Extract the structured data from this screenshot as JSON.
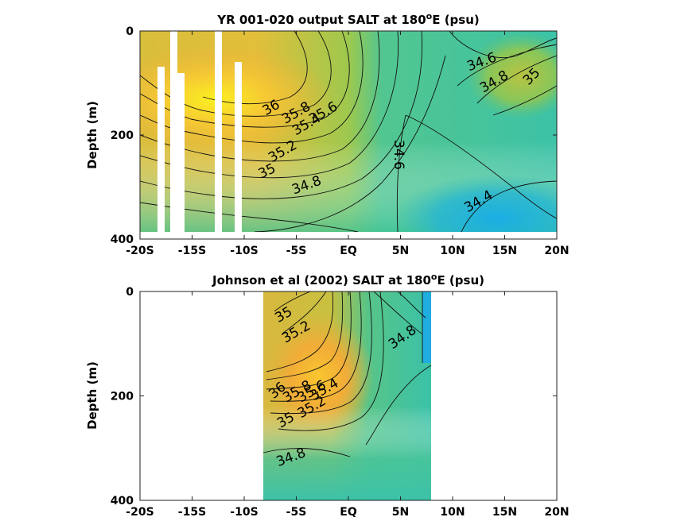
{
  "chart_data": [
    {
      "type": "heatmap",
      "title_main": "YR 001-020 output SALT at 180",
      "title_sup": "o",
      "title_tail": "E (psu)",
      "xlabel": "",
      "ylabel": "Depth (m)",
      "xlim": [
        -20,
        20
      ],
      "ylim": [
        400,
        0
      ],
      "xticks": [
        -20,
        -15,
        -10,
        -5,
        0,
        5,
        10,
        15,
        20
      ],
      "xtick_labels": [
        "-20S",
        "-15S",
        "-10S",
        "-5S",
        "EQ",
        "5N",
        "10N",
        "15N",
        "20N"
      ],
      "yticks": [
        0,
        200,
        400
      ],
      "ytick_labels": [
        "0",
        "200",
        "400"
      ],
      "colormap": [
        "#1fb0e0",
        "#30c0b0",
        "#60c880",
        "#a8c848",
        "#e6bd38",
        "#f3a838",
        "#faef28"
      ],
      "data_extent": {
        "x": [
          -20,
          20
        ],
        "depth": [
          0,
          385
        ]
      },
      "masked_columns": [
        [
          -18.2,
          -17.4,
          70,
          400
        ],
        [
          -16.6,
          -16.0,
          0,
          400
        ],
        [
          -16.0,
          -15.2,
          80,
          400
        ],
        [
          -12.2,
          -11.5,
          0,
          400
        ],
        [
          -11.2,
          -10.6,
          60,
          400
        ]
      ],
      "contour_labels": [
        {
          "text": "36",
          "x": -7.4,
          "depth": 148,
          "rot": -30
        },
        {
          "text": "35.8",
          "x": -5.0,
          "depth": 158,
          "rot": -30
        },
        {
          "text": "35.6",
          "x": -2.4,
          "depth": 158,
          "rot": -30
        },
        {
          "text": "35.4",
          "x": -4.0,
          "depth": 180,
          "rot": -30
        },
        {
          "text": "35.2",
          "x": -6.3,
          "depth": 232,
          "rot": -30
        },
        {
          "text": "35",
          "x": -7.8,
          "depth": 270,
          "rot": -25
        },
        {
          "text": "34.8",
          "x": -4.0,
          "depth": 297,
          "rot": -20
        },
        {
          "text": "34.6",
          "x": 4.8,
          "depth": 238,
          "rot": 90
        },
        {
          "text": "34.4",
          "x": 12.5,
          "depth": 328,
          "rot": -30
        },
        {
          "text": "34.6",
          "x": 12.8,
          "depth": 60,
          "rot": -20
        },
        {
          "text": "34.8",
          "x": 14.0,
          "depth": 98,
          "rot": -30
        },
        {
          "text": "35",
          "x": 17.6,
          "depth": 88,
          "rot": -45
        }
      ]
    },
    {
      "type": "heatmap",
      "title_main": "Johnson et al (2002) SALT at 180",
      "title_sup": "o",
      "title_tail": "E (psu)",
      "xlabel": "",
      "ylabel": "Depth (m)",
      "xlim": [
        -20,
        20
      ],
      "ylim": [
        400,
        0
      ],
      "xticks": [
        -20,
        -15,
        -10,
        -5,
        0,
        5,
        10,
        15,
        20
      ],
      "xtick_labels": [
        "-20S",
        "-15S",
        "-10S",
        "-5S",
        "EQ",
        "5N",
        "10N",
        "15N",
        "20N"
      ],
      "yticks": [
        0,
        200,
        400
      ],
      "ytick_labels": [
        "0",
        "200",
        "400"
      ],
      "colormap": [
        "#1fb0e0",
        "#30c0b0",
        "#60c880",
        "#a8c848",
        "#e6bd38",
        "#f3a838",
        "#faef28"
      ],
      "data_extent": {
        "x": [
          -8,
          8
        ],
        "depth": [
          0,
          400
        ]
      },
      "masked_columns": [],
      "contour_labels": [
        {
          "text": "35",
          "x": -6.2,
          "depth": 45,
          "rot": -30
        },
        {
          "text": "35.2",
          "x": -5.0,
          "depth": 78,
          "rot": -30
        },
        {
          "text": "34.8",
          "x": 5.2,
          "depth": 88,
          "rot": -35
        },
        {
          "text": "36",
          "x": -6.8,
          "depth": 190,
          "rot": -40
        },
        {
          "text": "35.8",
          "x": -4.9,
          "depth": 192,
          "rot": -30
        },
        {
          "text": "35.6",
          "x": -3.5,
          "depth": 192,
          "rot": -30
        },
        {
          "text": "35.4",
          "x": -2.3,
          "depth": 188,
          "rot": -30
        },
        {
          "text": "35.2",
          "x": -3.5,
          "depth": 222,
          "rot": -30
        },
        {
          "text": "35",
          "x": -6.0,
          "depth": 247,
          "rot": -30
        },
        {
          "text": "34.8",
          "x": -5.5,
          "depth": 318,
          "rot": -20
        }
      ]
    }
  ]
}
